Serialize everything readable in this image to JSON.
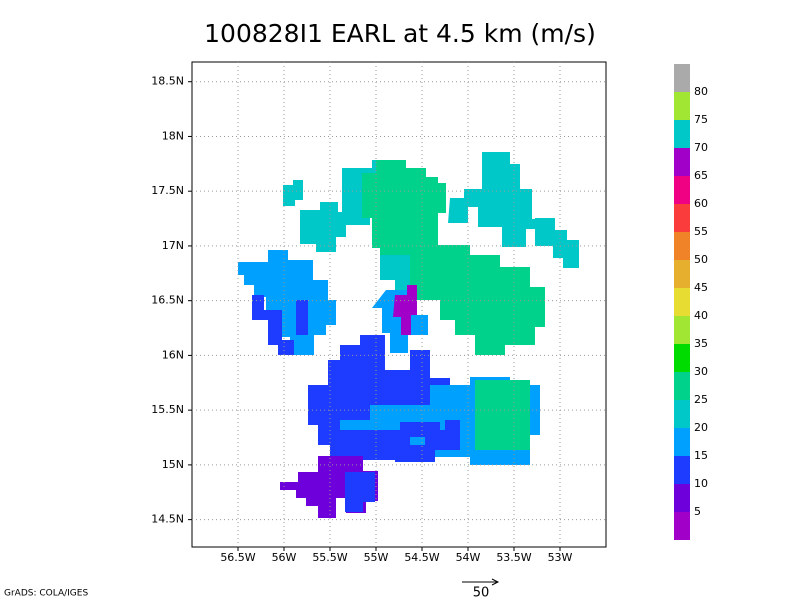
{
  "title": "100828I1 EARL at 4.5 km (m/s)",
  "map": {
    "lonlim": [
      -57,
      -52.5
    ],
    "latlim": [
      14.25,
      18.68
    ],
    "lonticks": [
      {
        "value": -56.5,
        "label": "56.5W"
      },
      {
        "value": -56,
        "label": "56W"
      },
      {
        "value": -55.5,
        "label": "55.5W"
      },
      {
        "value": -55,
        "label": "55W"
      },
      {
        "value": -54.5,
        "label": "54.5W"
      },
      {
        "value": -54,
        "label": "54W"
      },
      {
        "value": -53.5,
        "label": "53.5W"
      },
      {
        "value": -53,
        "label": "53W"
      }
    ],
    "latticks": [
      {
        "value": 14.5,
        "label": "14.5N"
      },
      {
        "value": 15,
        "label": "15N"
      },
      {
        "value": 15.5,
        "label": "15.5N"
      },
      {
        "value": 16,
        "label": "16N"
      },
      {
        "value": 16.5,
        "label": "16.5N"
      },
      {
        "value": 17,
        "label": "17N"
      },
      {
        "value": 17.5,
        "label": "17.5N"
      },
      {
        "value": 18,
        "label": "18N"
      },
      {
        "value": 18.5,
        "label": "18.5N"
      }
    ],
    "grid": true
  },
  "colorbar": {
    "levels": [
      5,
      10,
      15,
      20,
      25,
      30,
      35,
      40,
      45,
      50,
      55,
      60,
      65,
      70,
      75,
      80
    ],
    "colors": [
      "#a000c8",
      "#6e00dc",
      "#1e3cff",
      "#00a0ff",
      "#00c8c8",
      "#00d28c",
      "#00dc00",
      "#a0e632",
      "#e6dc32",
      "#e6af2d",
      "#f08228",
      "#fa3c3c",
      "#f00082",
      "#a000c8",
      "#00c8c8",
      "#a0e632",
      "#aaaaaa"
    ]
  },
  "vector_scale": 50,
  "credit": "GrADS: COLA/IGES"
}
